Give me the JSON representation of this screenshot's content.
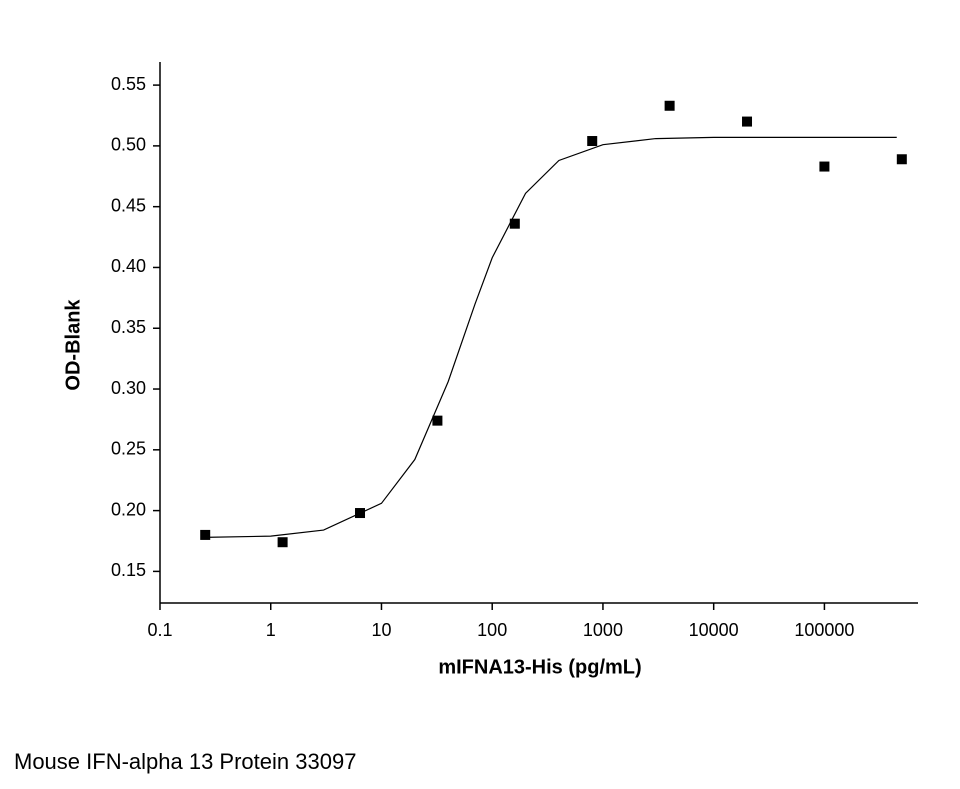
{
  "chart_data": {
    "type": "scatter",
    "x_label": "mIFNA13-His (pg/mL)",
    "y_label": "OD-Blank",
    "caption": "Mouse IFN-alpha 13 Protein 33097",
    "xscale": "log",
    "xlim": [
      0.1,
      700000
    ],
    "xticks": [
      0.1,
      1,
      10,
      100,
      1000,
      10000,
      100000
    ],
    "ylim": [
      0.124,
      0.569
    ],
    "yticks": [
      0.15,
      {
        "value": 0.2,
        "label": "0.20"
      },
      0.25,
      {
        "value": 0.3,
        "label": "0.30"
      },
      0.35,
      {
        "value": 0.4,
        "label": "0.40"
      },
      0.45,
      {
        "value": 0.5,
        "label": "0.50"
      },
      0.55
    ],
    "series": [
      {
        "mode": "markers",
        "color": "#000000",
        "x": [
          0.256,
          1.28,
          6.4,
          32,
          160,
          800,
          4000,
          20000,
          100000,
          500000
        ],
        "values": [
          0.18,
          0.174,
          0.198,
          0.274,
          0.436,
          0.504,
          0.533,
          0.52,
          0.483,
          0.489
        ]
      },
      {
        "mode": "line",
        "color": "#000000",
        "x": [
          0.25,
          1,
          3,
          10,
          20,
          40,
          70,
          100,
          200,
          400,
          1000,
          3000,
          10000,
          100000,
          450000
        ],
        "values": [
          0.178,
          0.179,
          0.184,
          0.206,
          0.242,
          0.306,
          0.37,
          0.408,
          0.461,
          0.488,
          0.501,
          0.506,
          0.507,
          0.507,
          0.507
        ]
      }
    ]
  }
}
